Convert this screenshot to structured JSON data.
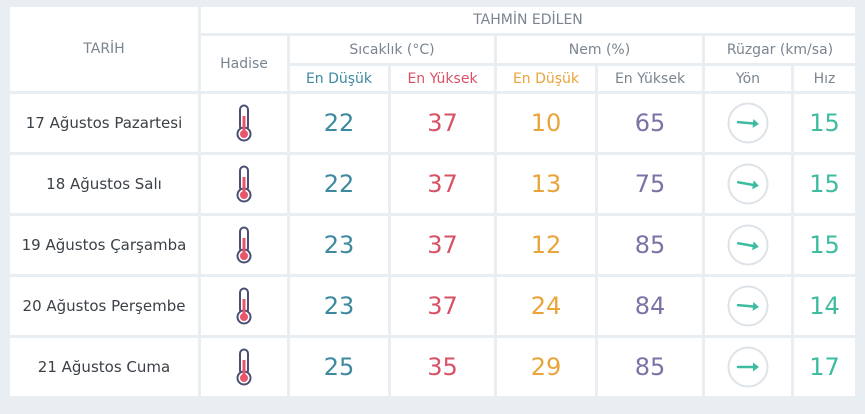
{
  "header": {
    "date_label": "TARİH",
    "forecast_label": "TAHMİN EDİLEN",
    "event_label": "Hadise",
    "temp_label": "Sıcaklık (°C)",
    "humidity_label": "Nem (%)",
    "wind_label": "Rüzgar (km/sa)",
    "temp_min_label": "En Düşük",
    "temp_max_label": "En Yüksek",
    "hum_min_label": "En Düşük",
    "hum_max_label": "En Yüksek",
    "wind_dir_label": "Yön",
    "wind_speed_label": "Hız"
  },
  "colors": {
    "temp_min": "#3d89a0",
    "temp_max": "#d85266",
    "hum_min": "#e9a43a",
    "hum_max": "#7a73a6",
    "wind_speed": "#3dbca0"
  },
  "rows": [
    {
      "date": "17 Ağustos Pazartesi",
      "event_icon": "thermometer-icon",
      "temp_min": "22",
      "temp_max": "37",
      "hum_min": "10",
      "hum_max": "65",
      "wind_dir_icon": "wind-direction-arrow-icon",
      "wind_dir_deg": 95,
      "wind_speed": "15"
    },
    {
      "date": "18 Ağustos Salı",
      "event_icon": "thermometer-icon",
      "temp_min": "22",
      "temp_max": "37",
      "hum_min": "13",
      "hum_max": "75",
      "wind_dir_icon": "wind-direction-arrow-icon",
      "wind_dir_deg": 100,
      "wind_speed": "15"
    },
    {
      "date": "19 Ağustos Çarşamba",
      "event_icon": "thermometer-icon",
      "temp_min": "23",
      "temp_max": "37",
      "hum_min": "12",
      "hum_max": "85",
      "wind_dir_icon": "wind-direction-arrow-icon",
      "wind_dir_deg": 100,
      "wind_speed": "15"
    },
    {
      "date": "20 Ağustos Perşembe",
      "event_icon": "thermometer-icon",
      "temp_min": "23",
      "temp_max": "37",
      "hum_min": "24",
      "hum_max": "84",
      "wind_dir_icon": "wind-direction-arrow-icon",
      "wind_dir_deg": 95,
      "wind_speed": "14"
    },
    {
      "date": "21 Ağustos Cuma",
      "event_icon": "thermometer-icon",
      "temp_min": "25",
      "temp_max": "35",
      "hum_min": "29",
      "hum_max": "85",
      "wind_dir_icon": "wind-direction-arrow-icon",
      "wind_dir_deg": 90,
      "wind_speed": "17"
    }
  ]
}
